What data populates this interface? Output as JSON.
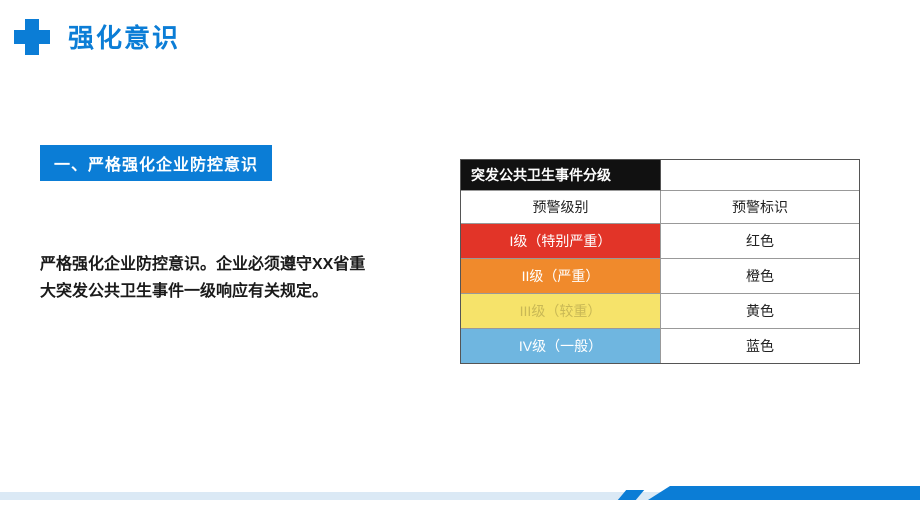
{
  "header": {
    "title": "强化意识"
  },
  "left": {
    "section_header": "一、严格强化企业防控意识",
    "body_text": "严格强化企业防控意识。企业必须遵守XX省重大突发公共卫生事件一级响应有关规定。"
  },
  "table": {
    "title": "突发公共卫生事件分级",
    "col1_header": "预警级别",
    "col2_header": "预警标识",
    "rows": [
      {
        "level": "I级（特别严重）",
        "marker": "红色",
        "bg_color": "#e23428",
        "text_color": "#ffffff"
      },
      {
        "level": "II级（严重）",
        "marker": "橙色",
        "bg_color": "#f08a2c",
        "text_color": "#ffffff"
      },
      {
        "level": "III级（较重）",
        "marker": "黄色",
        "bg_color": "#f6e36a",
        "text_color": "#c9b855"
      },
      {
        "level": "IV级（一般）",
        "marker": "蓝色",
        "bg_color": "#6fb6e0",
        "text_color": "#ffffff"
      }
    ]
  },
  "colors": {
    "accent": "#0b7dd6",
    "footer_light": "#dbe9f5"
  }
}
